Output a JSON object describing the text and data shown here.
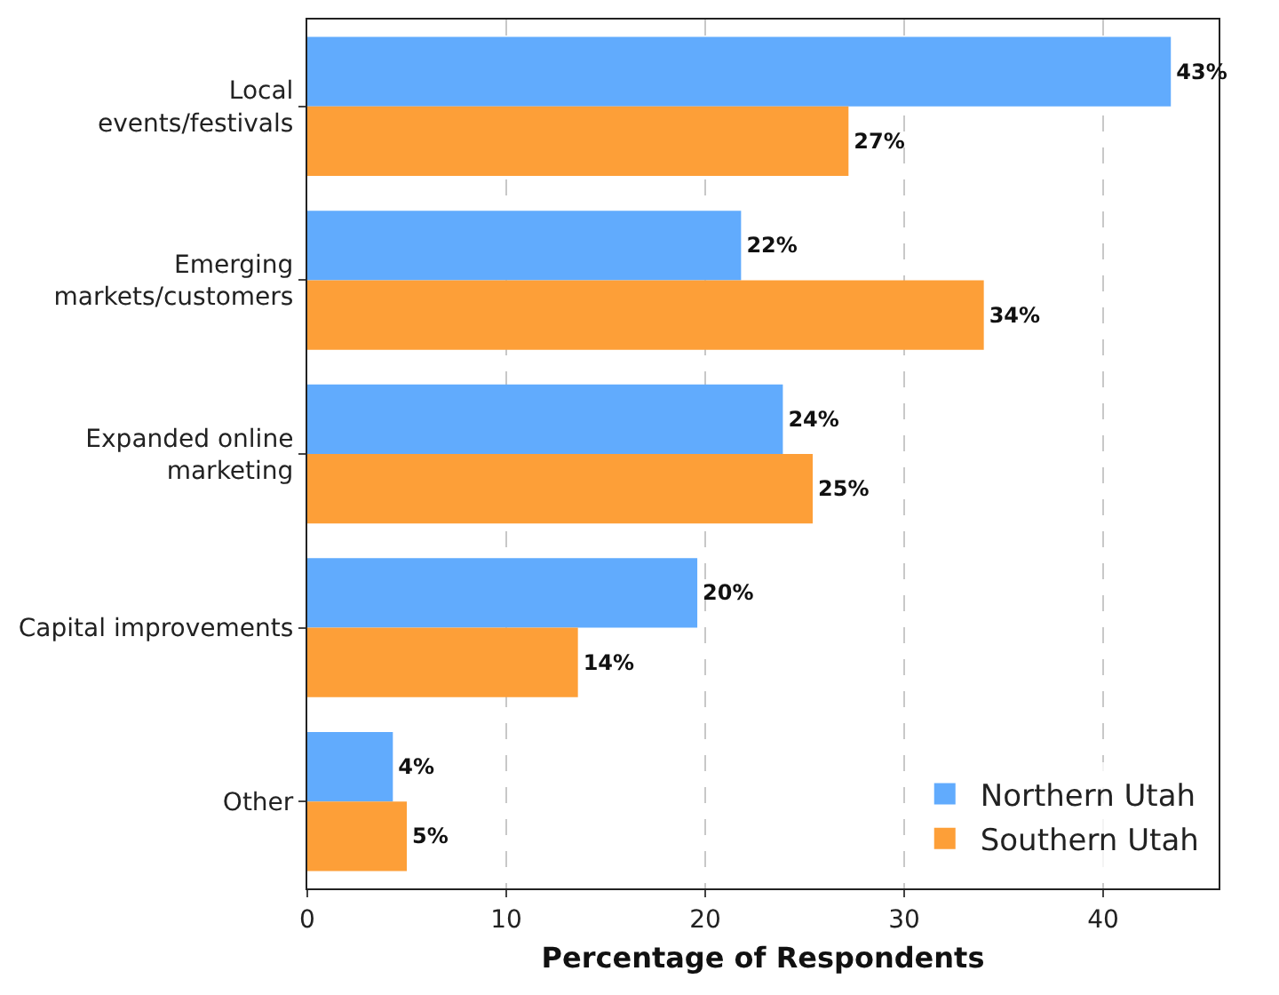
{
  "chart_data": {
    "type": "bar",
    "orientation": "horizontal",
    "xlabel": "Percentage of Respondents",
    "categories": [
      "Local\nevents/festivals",
      "Emerging\nmarkets/customers",
      "Expanded online\nmarketing",
      "Capital improvements",
      "Other"
    ],
    "series": [
      {
        "name": "Northern Utah",
        "color": "#61abfd",
        "values": [
          43.4,
          21.8,
          23.9,
          19.6,
          4.3
        ],
        "value_labels": [
          "43%",
          "22%",
          "24%",
          "20%",
          "4%"
        ]
      },
      {
        "name": "Southern Utah",
        "color": "#fd9f38",
        "values": [
          27.2,
          34.0,
          25.4,
          13.6,
          5.0
        ],
        "value_labels": [
          "27%",
          "34%",
          "25%",
          "14%",
          "5%"
        ]
      }
    ],
    "xlim": [
      0,
      45.8
    ],
    "xticks": [
      0,
      10,
      20,
      30,
      40
    ],
    "grid": "x",
    "legend": "bottom right"
  }
}
